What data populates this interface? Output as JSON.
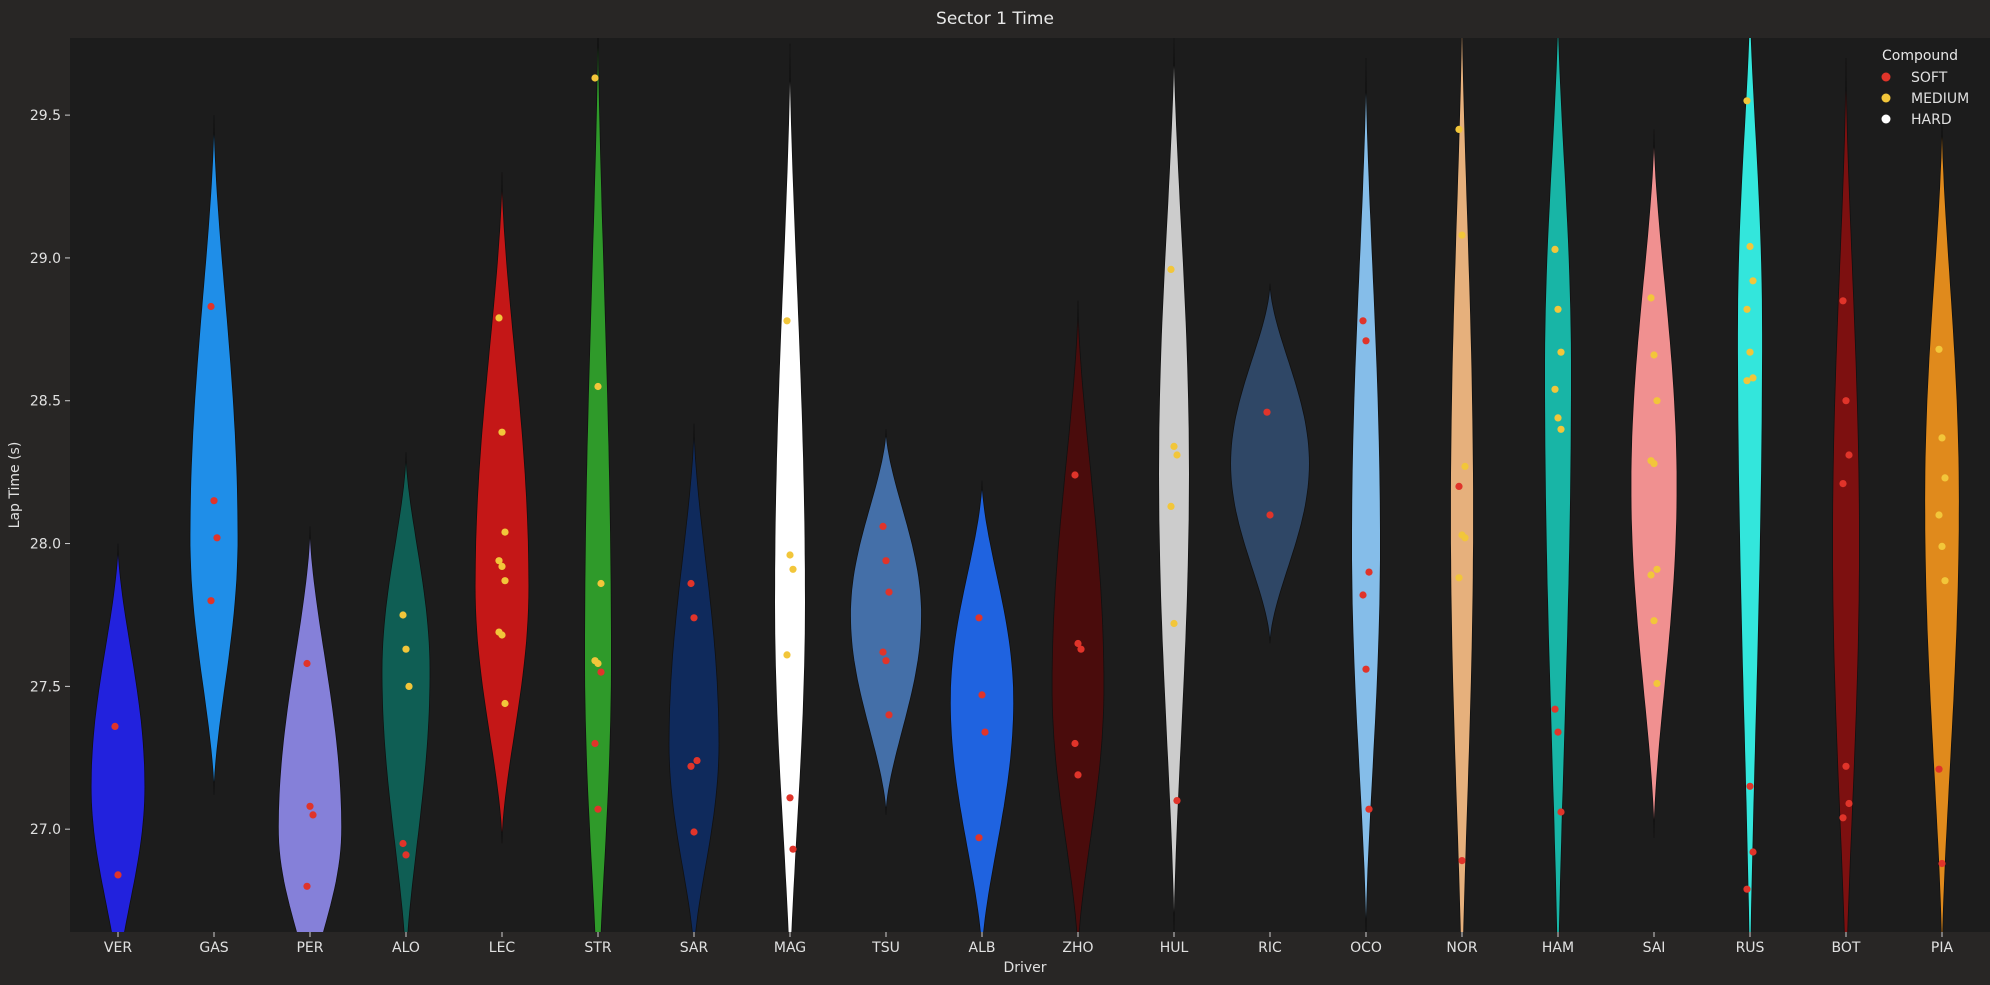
{
  "chart_data": {
    "type": "violin",
    "title": "Sector 1 Time",
    "xlabel": "Driver",
    "ylabel": "Lap Time (s)",
    "ylim": [
      26.64,
      29.77
    ],
    "yticks": [
      "27.0",
      "27.5",
      "28.0",
      "28.5",
      "29.0",
      "29.5"
    ],
    "grid": false,
    "legend": {
      "title": "Compound",
      "placement": "top-right",
      "entries": [
        {
          "name": "SOFT",
          "color": "#e0342a"
        },
        {
          "name": "MEDIUM",
          "color": "#f2c63a"
        },
        {
          "name": "HARD",
          "color": "#ffffff"
        }
      ]
    },
    "drivers": [
      {
        "name": "VER",
        "color": "#2222dd",
        "range": [
          26.45,
          28.0
        ],
        "peak": 27.15,
        "maxw": 0.28,
        "points": [
          {
            "y": 27.36,
            "c": "SOFT"
          },
          {
            "y": 26.84,
            "c": "SOFT"
          }
        ]
      },
      {
        "name": "GAS",
        "color": "#1f8ee8",
        "range": [
          27.12,
          29.5
        ],
        "peak": 28.02,
        "maxw": 0.25,
        "points": [
          {
            "y": 28.83,
            "c": "SOFT"
          },
          {
            "y": 28.15,
            "c": "SOFT"
          },
          {
            "y": 28.02,
            "c": "SOFT"
          },
          {
            "y": 27.8,
            "c": "SOFT"
          }
        ]
      },
      {
        "name": "PER",
        "color": "#8580d9",
        "range": [
          26.4,
          28.06
        ],
        "peak": 27.0,
        "maxw": 0.33,
        "points": [
          {
            "y": 27.58,
            "c": "SOFT"
          },
          {
            "y": 27.08,
            "c": "SOFT"
          },
          {
            "y": 27.05,
            "c": "SOFT"
          },
          {
            "y": 26.8,
            "c": "SOFT"
          }
        ]
      },
      {
        "name": "ALO",
        "color": "#0f5e54",
        "range": [
          26.5,
          28.32
        ],
        "peak": 27.55,
        "maxw": 0.25,
        "points": [
          {
            "y": 27.75,
            "c": "MEDIUM"
          },
          {
            "y": 27.63,
            "c": "MEDIUM"
          },
          {
            "y": 27.5,
            "c": "MEDIUM"
          },
          {
            "y": 26.95,
            "c": "SOFT"
          },
          {
            "y": 26.91,
            "c": "SOFT"
          }
        ]
      },
      {
        "name": "LEC",
        "color": "#c41717",
        "range": [
          26.95,
          29.3
        ],
        "peak": 27.85,
        "maxw": 0.28,
        "points": [
          {
            "y": 28.79,
            "c": "MEDIUM"
          },
          {
            "y": 28.39,
            "c": "MEDIUM"
          },
          {
            "y": 28.04,
            "c": "MEDIUM"
          },
          {
            "y": 27.94,
            "c": "MEDIUM"
          },
          {
            "y": 27.92,
            "c": "MEDIUM"
          },
          {
            "y": 27.87,
            "c": "MEDIUM"
          },
          {
            "y": 27.69,
            "c": "MEDIUM"
          },
          {
            "y": 27.68,
            "c": "MEDIUM"
          },
          {
            "y": 27.44,
            "c": "MEDIUM"
          }
        ]
      },
      {
        "name": "STR",
        "color": "#2f9a2a",
        "range": [
          26.3,
          29.9
        ],
        "peak": 27.6,
        "maxw": 0.14,
        "points": [
          {
            "y": 29.63,
            "c": "MEDIUM"
          },
          {
            "y": 28.55,
            "c": "MEDIUM"
          },
          {
            "y": 27.86,
            "c": "MEDIUM"
          },
          {
            "y": 27.59,
            "c": "MEDIUM"
          },
          {
            "y": 27.58,
            "c": "MEDIUM"
          },
          {
            "y": 27.55,
            "c": "SOFT"
          },
          {
            "y": 27.3,
            "c": "SOFT"
          },
          {
            "y": 27.07,
            "c": "SOFT"
          }
        ]
      },
      {
        "name": "SAR",
        "color": "#0f2a5c",
        "range": [
          26.55,
          28.42
        ],
        "peak": 27.3,
        "maxw": 0.26,
        "points": [
          {
            "y": 27.86,
            "c": "SOFT"
          },
          {
            "y": 27.74,
            "c": "SOFT"
          },
          {
            "y": 27.24,
            "c": "SOFT"
          },
          {
            "y": 27.22,
            "c": "SOFT"
          },
          {
            "y": 26.99,
            "c": "SOFT"
          }
        ]
      },
      {
        "name": "MAG",
        "color": "#ffffff",
        "range": [
          26.4,
          29.75
        ],
        "peak": 27.8,
        "maxw": 0.16,
        "points": [
          {
            "y": 28.78,
            "c": "MEDIUM"
          },
          {
            "y": 27.96,
            "c": "MEDIUM"
          },
          {
            "y": 27.91,
            "c": "MEDIUM"
          },
          {
            "y": 27.61,
            "c": "MEDIUM"
          },
          {
            "y": 27.11,
            "c": "SOFT"
          },
          {
            "y": 26.93,
            "c": "SOFT"
          }
        ]
      },
      {
        "name": "TSU",
        "color": "#446fa8",
        "range": [
          27.05,
          28.4
        ],
        "peak": 27.75,
        "maxw": 0.37,
        "points": [
          {
            "y": 28.06,
            "c": "SOFT"
          },
          {
            "y": 27.94,
            "c": "SOFT"
          },
          {
            "y": 27.83,
            "c": "SOFT"
          },
          {
            "y": 27.62,
            "c": "SOFT"
          },
          {
            "y": 27.59,
            "c": "SOFT"
          },
          {
            "y": 27.4,
            "c": "SOFT"
          }
        ]
      },
      {
        "name": "ALB",
        "color": "#1f63e0",
        "range": [
          26.55,
          28.22
        ],
        "peak": 27.45,
        "maxw": 0.33,
        "points": [
          {
            "y": 27.74,
            "c": "SOFT"
          },
          {
            "y": 27.47,
            "c": "SOFT"
          },
          {
            "y": 27.34,
            "c": "SOFT"
          },
          {
            "y": 26.97,
            "c": "SOFT"
          }
        ]
      },
      {
        "name": "ZHO",
        "color": "#4a0c0c",
        "range": [
          26.55,
          28.85
        ],
        "peak": 27.5,
        "maxw": 0.27,
        "points": [
          {
            "y": 28.24,
            "c": "SOFT"
          },
          {
            "y": 27.65,
            "c": "SOFT"
          },
          {
            "y": 27.63,
            "c": "SOFT"
          },
          {
            "y": 27.3,
            "c": "SOFT"
          },
          {
            "y": 27.19,
            "c": "SOFT"
          }
        ]
      },
      {
        "name": "HUL",
        "color": "#cccccc",
        "range": [
          26.6,
          29.78
        ],
        "peak": 28.25,
        "maxw": 0.16,
        "points": [
          {
            "y": 28.96,
            "c": "MEDIUM"
          },
          {
            "y": 28.34,
            "c": "MEDIUM"
          },
          {
            "y": 28.31,
            "c": "MEDIUM"
          },
          {
            "y": 28.13,
            "c": "MEDIUM"
          },
          {
            "y": 27.72,
            "c": "MEDIUM"
          },
          {
            "y": 27.1,
            "c": "SOFT"
          }
        ]
      },
      {
        "name": "RIC",
        "color": "#2f4766",
        "range": [
          27.65,
          28.91
        ],
        "peak": 28.28,
        "maxw": 0.41,
        "points": [
          {
            "y": 28.46,
            "c": "SOFT"
          },
          {
            "y": 28.1,
            "c": "SOFT"
          }
        ]
      },
      {
        "name": "OCO",
        "color": "#85bde9",
        "range": [
          26.6,
          29.7
        ],
        "peak": 28.0,
        "maxw": 0.15,
        "points": [
          {
            "y": 28.78,
            "c": "SOFT"
          },
          {
            "y": 28.71,
            "c": "SOFT"
          },
          {
            "y": 27.9,
            "c": "SOFT"
          },
          {
            "y": 27.82,
            "c": "SOFT"
          },
          {
            "y": 27.56,
            "c": "SOFT"
          },
          {
            "y": 27.07,
            "c": "SOFT"
          }
        ]
      },
      {
        "name": "NOR",
        "color": "#e6b07c",
        "range": [
          26.3,
          29.95
        ],
        "peak": 28.1,
        "maxw": 0.12,
        "points": [
          {
            "y": 29.45,
            "c": "MEDIUM"
          },
          {
            "y": 29.08,
            "c": "MEDIUM"
          },
          {
            "y": 28.27,
            "c": "MEDIUM"
          },
          {
            "y": 28.2,
            "c": "SOFT"
          },
          {
            "y": 28.03,
            "c": "MEDIUM"
          },
          {
            "y": 28.02,
            "c": "MEDIUM"
          },
          {
            "y": 27.88,
            "c": "MEDIUM"
          },
          {
            "y": 26.89,
            "c": "SOFT"
          }
        ]
      },
      {
        "name": "HAM",
        "color": "#18b5a6",
        "range": [
          26.3,
          29.9
        ],
        "peak": 28.6,
        "maxw": 0.14,
        "points": [
          {
            "y": 29.03,
            "c": "MEDIUM"
          },
          {
            "y": 28.82,
            "c": "MEDIUM"
          },
          {
            "y": 28.67,
            "c": "MEDIUM"
          },
          {
            "y": 28.54,
            "c": "MEDIUM"
          },
          {
            "y": 28.44,
            "c": "MEDIUM"
          },
          {
            "y": 28.4,
            "c": "MEDIUM"
          },
          {
            "y": 27.42,
            "c": "SOFT"
          },
          {
            "y": 27.34,
            "c": "SOFT"
          },
          {
            "y": 27.06,
            "c": "SOFT"
          }
        ]
      },
      {
        "name": "SAI",
        "color": "#f09090",
        "range": [
          26.97,
          29.45
        ],
        "peak": 28.2,
        "maxw": 0.24,
        "points": [
          {
            "y": 28.86,
            "c": "MEDIUM"
          },
          {
            "y": 28.66,
            "c": "MEDIUM"
          },
          {
            "y": 28.5,
            "c": "MEDIUM"
          },
          {
            "y": 28.29,
            "c": "MEDIUM"
          },
          {
            "y": 28.28,
            "c": "MEDIUM"
          },
          {
            "y": 27.91,
            "c": "MEDIUM"
          },
          {
            "y": 27.89,
            "c": "MEDIUM"
          },
          {
            "y": 27.73,
            "c": "MEDIUM"
          },
          {
            "y": 27.51,
            "c": "MEDIUM"
          }
        ]
      },
      {
        "name": "RUS",
        "color": "#33e6dc",
        "range": [
          26.3,
          29.95
        ],
        "peak": 28.75,
        "maxw": 0.13,
        "points": [
          {
            "y": 29.55,
            "c": "MEDIUM"
          },
          {
            "y": 29.04,
            "c": "MEDIUM"
          },
          {
            "y": 28.92,
            "c": "MEDIUM"
          },
          {
            "y": 28.82,
            "c": "MEDIUM"
          },
          {
            "y": 28.67,
            "c": "MEDIUM"
          },
          {
            "y": 28.58,
            "c": "MEDIUM"
          },
          {
            "y": 28.57,
            "c": "MEDIUM"
          },
          {
            "y": 27.15,
            "c": "SOFT"
          },
          {
            "y": 26.92,
            "c": "SOFT"
          },
          {
            "y": 26.79,
            "c": "SOFT"
          }
        ]
      },
      {
        "name": "BOT",
        "color": "#7d1010",
        "range": [
          26.35,
          29.7
        ],
        "peak": 28.0,
        "maxw": 0.14,
        "points": [
          {
            "y": 28.85,
            "c": "SOFT"
          },
          {
            "y": 28.5,
            "c": "SOFT"
          },
          {
            "y": 28.31,
            "c": "SOFT"
          },
          {
            "y": 28.21,
            "c": "SOFT"
          },
          {
            "y": 27.22,
            "c": "SOFT"
          },
          {
            "y": 27.09,
            "c": "SOFT"
          },
          {
            "y": 27.04,
            "c": "SOFT"
          }
        ]
      },
      {
        "name": "PIA",
        "color": "#e08a1c",
        "range": [
          26.5,
          29.5
        ],
        "peak": 28.15,
        "maxw": 0.18,
        "points": [
          {
            "y": 28.68,
            "c": "MEDIUM"
          },
          {
            "y": 28.37,
            "c": "MEDIUM"
          },
          {
            "y": 28.23,
            "c": "MEDIUM"
          },
          {
            "y": 28.1,
            "c": "MEDIUM"
          },
          {
            "y": 27.99,
            "c": "MEDIUM"
          },
          {
            "y": 27.87,
            "c": "MEDIUM"
          },
          {
            "y": 27.21,
            "c": "SOFT"
          },
          {
            "y": 26.88,
            "c": "SOFT"
          }
        ]
      }
    ]
  }
}
